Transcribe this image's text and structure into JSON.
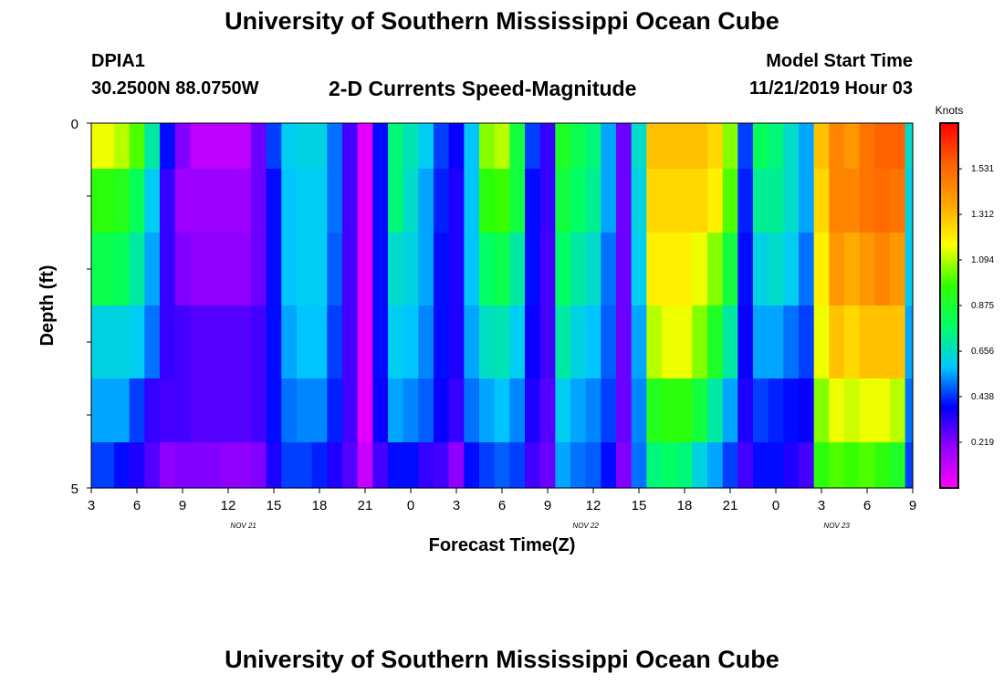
{
  "header": {
    "title": "University of Southern Mississippi Ocean Cube",
    "station": "DPIA1",
    "coords": "30.2500N 88.0750W",
    "subtitle": "2-D Currents Speed-Magnitude",
    "model_start_label": "Model Start Time",
    "model_start_value": "11/21/2019 Hour 03"
  },
  "footer": {
    "title": "University of Southern Mississippi Ocean Cube"
  },
  "chart_data": {
    "type": "heatmap",
    "xlabel": "Forecast Time(Z)",
    "ylabel": "Depth (ft)",
    "x_start_hour": 3,
    "x_end_hour": 57,
    "x_tick_hours": [
      3,
      6,
      9,
      12,
      15,
      18,
      21,
      24,
      27,
      30,
      33,
      36,
      39,
      42,
      45,
      48,
      51,
      54,
      57
    ],
    "x_tick_labels": [
      "3",
      "6",
      "9",
      "12",
      "15",
      "18",
      "21",
      "0",
      "3",
      "6",
      "9",
      "12",
      "15",
      "18",
      "21",
      "0",
      "3",
      "6",
      "9"
    ],
    "date_labels": [
      {
        "hour": 13,
        "label": "NOV 21"
      },
      {
        "hour": 35.5,
        "label": "NOV 22"
      },
      {
        "hour": 52,
        "label": "NOV 23"
      }
    ],
    "ylim": [
      0,
      5
    ],
    "y_tick_labels": [
      "0",
      "5"
    ],
    "depth_levels": [
      0.25,
      1,
      2,
      3,
      4,
      4.75
    ],
    "colorbar": {
      "units": "Knots",
      "min": 0,
      "max": 1.75,
      "ticks": [
        1.531,
        1.312,
        1.094,
        0.875,
        0.656,
        0.438,
        0.219
      ],
      "tick_labels": [
        "1.531",
        "1.312",
        "1.094",
        "0.875",
        "0.656",
        "0.438",
        "0.219"
      ],
      "stops": [
        "#ff00ff",
        "#9400ff",
        "#0000ff",
        "#00c8ff",
        "#00ff64",
        "#30ff00",
        "#ffff00",
        "#ffa500",
        "#ff6000",
        "#ff0000"
      ]
    },
    "hours": [
      3,
      4,
      5,
      6,
      7,
      8,
      9,
      10,
      11,
      12,
      13,
      14,
      15,
      16,
      17,
      18,
      19,
      20,
      21,
      22,
      23,
      24,
      25,
      26,
      27,
      28,
      29,
      30,
      31,
      32,
      33,
      34,
      35,
      36,
      37,
      38,
      39,
      40,
      41,
      42,
      43,
      44,
      45,
      46,
      47,
      48,
      49,
      50,
      51,
      52,
      53,
      54,
      55,
      56,
      57
    ],
    "speed_knots": [
      [
        1.15,
        1.15,
        1.1,
        1.0,
        0.7,
        0.4,
        0.22,
        0.12,
        0.12,
        0.12,
        0.12,
        0.25,
        0.45,
        0.6,
        0.62,
        0.62,
        0.5,
        0.3,
        0.05,
        0.4,
        0.75,
        0.68,
        0.6,
        0.45,
        0.38,
        0.58,
        1.05,
        1.1,
        0.85,
        0.45,
        0.32,
        0.9,
        0.82,
        0.75,
        0.55,
        0.25,
        0.65,
        1.3,
        1.3,
        1.3,
        1.3,
        1.25,
        1.05,
        0.45,
        0.8,
        0.75,
        0.65,
        0.55,
        1.3,
        1.45,
        1.4,
        1.5,
        1.55,
        1.55,
        0.65
      ],
      [
        0.95,
        0.95,
        0.92,
        0.8,
        0.6,
        0.32,
        0.18,
        0.18,
        0.18,
        0.18,
        0.18,
        0.25,
        0.4,
        0.58,
        0.6,
        0.6,
        0.5,
        0.3,
        0.05,
        0.4,
        0.75,
        0.65,
        0.55,
        0.42,
        0.35,
        0.58,
        0.95,
        0.98,
        0.85,
        0.4,
        0.32,
        0.85,
        0.78,
        0.72,
        0.55,
        0.25,
        0.62,
        1.25,
        1.25,
        1.25,
        1.25,
        1.2,
        1.0,
        0.42,
        0.72,
        0.72,
        0.65,
        0.55,
        1.25,
        1.45,
        1.45,
        1.5,
        1.52,
        1.5,
        0.62
      ],
      [
        0.82,
        0.82,
        0.8,
        0.7,
        0.55,
        0.32,
        0.22,
        0.2,
        0.2,
        0.2,
        0.2,
        0.25,
        0.4,
        0.58,
        0.6,
        0.6,
        0.48,
        0.3,
        0.05,
        0.4,
        0.65,
        0.62,
        0.55,
        0.4,
        0.35,
        0.58,
        0.78,
        0.82,
        0.7,
        0.4,
        0.3,
        0.78,
        0.7,
        0.65,
        0.5,
        0.25,
        0.6,
        1.2,
        1.2,
        1.2,
        1.15,
        1.05,
        0.85,
        0.4,
        0.62,
        0.65,
        0.6,
        0.5,
        1.2,
        1.4,
        1.35,
        1.4,
        1.45,
        1.4,
        0.6
      ],
      [
        0.62,
        0.62,
        0.62,
        0.6,
        0.5,
        0.32,
        0.3,
        0.28,
        0.28,
        0.28,
        0.28,
        0.3,
        0.4,
        0.55,
        0.58,
        0.58,
        0.45,
        0.3,
        0.05,
        0.4,
        0.6,
        0.58,
        0.52,
        0.4,
        0.35,
        0.55,
        0.66,
        0.68,
        0.6,
        0.38,
        0.3,
        0.7,
        0.62,
        0.58,
        0.48,
        0.25,
        0.55,
        1.1,
        1.15,
        1.15,
        1.05,
        0.9,
        0.7,
        0.38,
        0.55,
        0.55,
        0.5,
        0.45,
        1.15,
        1.3,
        1.25,
        1.3,
        1.3,
        1.3,
        0.55
      ],
      [
        0.55,
        0.55,
        0.55,
        0.45,
        0.32,
        0.3,
        0.3,
        0.28,
        0.28,
        0.28,
        0.28,
        0.3,
        0.4,
        0.5,
        0.52,
        0.52,
        0.42,
        0.3,
        0.05,
        0.38,
        0.55,
        0.52,
        0.48,
        0.38,
        0.32,
        0.5,
        0.55,
        0.58,
        0.52,
        0.35,
        0.28,
        0.6,
        0.55,
        0.52,
        0.45,
        0.25,
        0.52,
        0.92,
        0.95,
        0.95,
        0.85,
        0.7,
        0.55,
        0.35,
        0.45,
        0.42,
        0.4,
        0.38,
        1.05,
        1.15,
        1.12,
        1.15,
        1.15,
        1.1,
        0.5
      ],
      [
        0.45,
        0.45,
        0.4,
        0.35,
        0.28,
        0.2,
        0.22,
        0.22,
        0.22,
        0.2,
        0.2,
        0.22,
        0.35,
        0.45,
        0.45,
        0.42,
        0.35,
        0.28,
        0.1,
        0.3,
        0.4,
        0.4,
        0.32,
        0.3,
        0.2,
        0.4,
        0.45,
        0.48,
        0.45,
        0.3,
        0.25,
        0.55,
        0.5,
        0.48,
        0.4,
        0.22,
        0.5,
        0.75,
        0.78,
        0.75,
        0.62,
        0.55,
        0.45,
        0.3,
        0.4,
        0.4,
        0.35,
        0.3,
        0.95,
        1.0,
        0.98,
        1.0,
        0.95,
        0.9,
        0.45
      ]
    ]
  }
}
